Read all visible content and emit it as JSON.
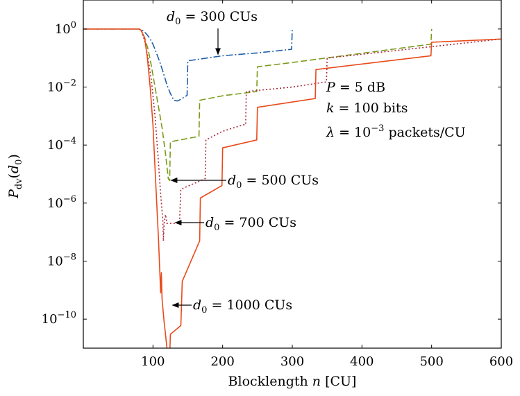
{
  "chart_data": {
    "type": "line",
    "xlabel": "Blocklength n [CU]",
    "ylabel": "P_dv(d_0)",
    "xlim": [
      0,
      600
    ],
    "ylim": [
      1e-11,
      10
    ],
    "yscale": "log",
    "x_ticks": [
      {
        "value": 100,
        "label": "100"
      },
      {
        "value": 200,
        "label": "200"
      },
      {
        "value": 300,
        "label": "300"
      },
      {
        "value": 400,
        "label": "400"
      },
      {
        "value": 500,
        "label": "500"
      },
      {
        "value": 600,
        "label": "600"
      }
    ],
    "y_ticks": [
      {
        "value": 1,
        "base": "10",
        "exp": "0"
      },
      {
        "value": 0.01,
        "base": "10",
        "exp": "−2"
      },
      {
        "value": 0.0001,
        "base": "10",
        "exp": "−4"
      },
      {
        "value": 1e-06,
        "base": "10",
        "exp": "−6"
      },
      {
        "value": 1e-08,
        "base": "10",
        "exp": "−8"
      },
      {
        "value": 1e-10,
        "base": "10",
        "exp": "−10"
      }
    ],
    "grid": false,
    "legend": "none",
    "annotations_text": {
      "param1": "P = 5 dB",
      "param2": "k = 100 bits",
      "param3": "λ = 10^−3 packets/CU"
    },
    "series": [
      {
        "label": "d0 = 300 CUs",
        "color": "#1f5fa8",
        "dash": "10 3 2 3",
        "points": [
          [
            0,
            1
          ],
          [
            80,
            1
          ],
          [
            82,
            0.98
          ],
          [
            85,
            0.9
          ],
          [
            90,
            0.7
          ],
          [
            95,
            0.5
          ],
          [
            100,
            0.3
          ],
          [
            105,
            0.15
          ],
          [
            110,
            0.07
          ],
          [
            115,
            0.03
          ],
          [
            120,
            0.012
          ],
          [
            125,
            0.006
          ],
          [
            130,
            0.0035
          ],
          [
            135,
            0.0033
          ],
          [
            140,
            0.0038
          ],
          [
            145,
            0.0045
          ],
          [
            149,
            0.0052
          ],
          [
            150,
            0.08
          ],
          [
            200,
            0.12
          ],
          [
            250,
            0.15
          ],
          [
            299,
            0.2
          ],
          [
            300,
            1
          ]
        ]
      },
      {
        "label": "d0 = 500 CUs",
        "color": "#7a9a1a",
        "dash": "9 4",
        "points": [
          [
            0,
            1
          ],
          [
            80,
            1
          ],
          [
            83,
            0.9
          ],
          [
            88,
            0.5
          ],
          [
            93,
            0.2
          ],
          [
            98,
            0.05
          ],
          [
            103,
            0.01
          ],
          [
            108,
            0.002
          ],
          [
            113,
            0.0004
          ],
          [
            118,
            5e-05
          ],
          [
            122,
            7e-06
          ],
          [
            124,
            6e-06
          ],
          [
            125,
            0.00013
          ],
          [
            166,
            0.0002
          ],
          [
            167,
            0.0035
          ],
          [
            200,
            0.005
          ],
          [
            249,
            0.007
          ],
          [
            250,
            0.05
          ],
          [
            300,
            0.07
          ],
          [
            499,
            0.3
          ],
          [
            500,
            1
          ]
        ]
      },
      {
        "label": "d0 = 700 CUs",
        "color": "#a8283a",
        "dash": "2 3",
        "points": [
          [
            0,
            1
          ],
          [
            80,
            1
          ],
          [
            83,
            0.9
          ],
          [
            88,
            0.4
          ],
          [
            93,
            0.1
          ],
          [
            98,
            0.015
          ],
          [
            103,
            0.001
          ],
          [
            107,
            5e-05
          ],
          [
            111,
            2e-06
          ],
          [
            114,
            3e-07
          ],
          [
            115,
            5e-08
          ],
          [
            116,
            2e-07
          ],
          [
            118,
            4e-07
          ],
          [
            120,
            2e-07
          ],
          [
            125,
            2e-07
          ],
          [
            130,
            2e-07
          ],
          [
            138,
            2e-07
          ],
          [
            140,
            3e-06
          ],
          [
            175,
            7e-06
          ],
          [
            176,
            0.00015
          ],
          [
            200,
            0.0003
          ],
          [
            230,
            0.0005
          ],
          [
            233,
            0.0005
          ],
          [
            234,
            0.007
          ],
          [
            300,
            0.01
          ],
          [
            349,
            0.015
          ],
          [
            350,
            0.1
          ],
          [
            600,
            0.45
          ]
        ]
      },
      {
        "label": "d0 = 1000 CUs",
        "color": "#e84a1a",
        "dash": "",
        "points": [
          [
            0,
            1
          ],
          [
            80,
            1
          ],
          [
            83,
            0.9
          ],
          [
            88,
            0.5
          ],
          [
            92,
            0.1
          ],
          [
            96,
            0.01
          ],
          [
            100,
            0.0005
          ],
          [
            104,
            5e-06
          ],
          [
            108,
            5e-08
          ],
          [
            111,
            8e-10
          ],
          [
            112,
            4e-09
          ],
          [
            113,
            5e-10
          ],
          [
            116,
            8e-11
          ],
          [
            118,
            3e-11
          ],
          [
            120,
            1e-11
          ],
          [
            122,
            8e-12
          ],
          [
            124,
            5e-12
          ],
          [
            125,
            3e-11
          ],
          [
            140,
            6e-11
          ],
          [
            142,
            2e-09
          ],
          [
            167,
            5e-08
          ],
          [
            168,
            1.5e-06
          ],
          [
            199,
            4e-06
          ],
          [
            200,
            8e-05
          ],
          [
            249,
            0.00015
          ],
          [
            250,
            0.002
          ],
          [
            333,
            0.004
          ],
          [
            334,
            0.04
          ],
          [
            499,
            0.12
          ],
          [
            500,
            0.35
          ],
          [
            600,
            0.45
          ]
        ]
      }
    ],
    "callouts": [
      {
        "label": "d0 = 300 CUs",
        "sub": "0",
        "text": " = 300 CUs",
        "target": [
          200,
          0.12
        ]
      },
      {
        "label": "d0 = 500 CUs",
        "sub": "0",
        "text": " = 500 CUs",
        "target": [
          124,
          6e-06
        ]
      },
      {
        "label": "d0 = 700 CUs",
        "sub": "0",
        "text": " = 700 CUs",
        "target": [
          130,
          2e-07
        ]
      },
      {
        "label": "d0 = 1000 CUs",
        "sub": "0",
        "text": " = 1000 CUs",
        "target": [
          126,
          3e-11
        ]
      }
    ]
  }
}
